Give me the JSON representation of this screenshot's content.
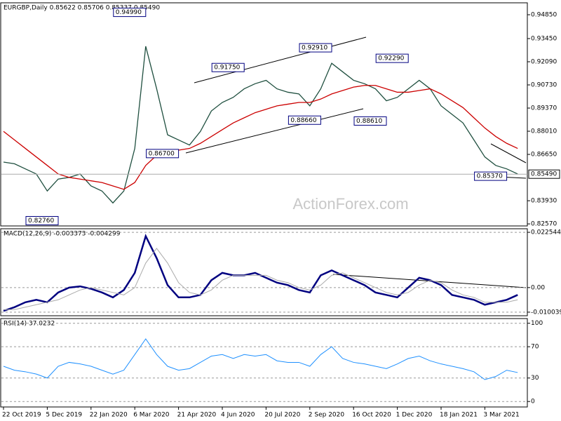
{
  "chart_data": [
    {
      "type": "line",
      "title": "EURGBP,Daily  0.85622 0.85706 0.85337 0.85490",
      "categories": [
        "22 Oct 2019",
        null,
        null,
        null,
        "5 Dec 2019",
        null,
        null,
        null,
        "22 Jan 2020",
        null,
        null,
        null,
        "6 Mar 2020",
        null,
        null,
        null,
        "21 Apr 2020",
        null,
        null,
        null,
        "4 Jun 2020",
        null,
        null,
        null,
        "20 Jul 2020",
        null,
        null,
        null,
        "2 Sep 2020",
        null,
        null,
        null,
        "16 Oct 2020",
        null,
        null,
        null,
        "1 Dec 2020",
        null,
        null,
        null,
        "18 Jan 2021",
        null,
        null,
        null,
        "3 Mar 2021",
        null,
        null,
        null
      ],
      "series": [
        {
          "color": "#1f4f3f",
          "values": [
            0.862,
            0.861,
            0.858,
            0.855,
            0.845,
            0.852,
            0.853,
            0.855,
            0.848,
            0.845,
            0.838,
            0.845,
            0.87,
            0.93,
            0.905,
            0.878,
            0.875,
            0.872,
            0.88,
            0.892,
            0.897,
            0.9,
            0.905,
            0.908,
            0.91,
            0.905,
            0.903,
            0.902,
            0.895,
            0.905,
            0.92,
            0.915,
            0.91,
            0.908,
            0.905,
            0.898,
            0.9,
            0.905,
            0.91,
            0.905,
            0.895,
            0.89,
            0.885,
            0.875,
            0.865,
            0.86,
            0.858,
            0.855
          ]
        },
        {
          "color": "#cc0000",
          "values": [
            0.88,
            0.875,
            0.87,
            0.865,
            0.86,
            0.855,
            0.853,
            0.852,
            0.851,
            0.85,
            0.848,
            0.846,
            0.85,
            0.86,
            0.866,
            0.868,
            0.869,
            0.87,
            0.873,
            0.877,
            0.881,
            0.885,
            0.888,
            0.891,
            0.893,
            0.895,
            0.896,
            0.897,
            0.897,
            0.899,
            0.902,
            0.904,
            0.906,
            0.907,
            0.907,
            0.905,
            0.903,
            0.903,
            0.904,
            0.905,
            0.902,
            0.898,
            0.894,
            0.888,
            0.882,
            0.877,
            0.873,
            0.87
          ]
        }
      ],
      "ylim": [
        0.8245,
        0.9555
      ],
      "yticks": [
        {
          "value": 0.9485,
          "label": "0.94850"
        },
        {
          "value": 0.9345,
          "label": "0.93450"
        },
        {
          "value": 0.9209,
          "label": "0.92090"
        },
        {
          "value": 0.9073,
          "label": "0.90730"
        },
        {
          "value": 0.8937,
          "label": "0.89370"
        },
        {
          "value": 0.8801,
          "label": "0.88010"
        },
        {
          "value": 0.8665,
          "label": "0.86650"
        },
        {
          "value": 0.8393,
          "label": "0.83930"
        },
        {
          "value": 0.8257,
          "label": "0.82570"
        }
      ],
      "last_price": {
        "value": 0.8549,
        "label": "0.85490"
      },
      "annotations": [
        {
          "index": 13,
          "value": 0.9499,
          "label": "0.94990"
        },
        {
          "index": 5,
          "value": 0.8276,
          "label": "0.82760"
        },
        {
          "index": 16,
          "value": 0.867,
          "label": "0.86700"
        },
        {
          "index": 22,
          "value": 0.9175,
          "label": "0.91750"
        },
        {
          "index": 30,
          "value": 0.9291,
          "label": "0.92910"
        },
        {
          "index": 29,
          "value": 0.8866,
          "label": "0.88660"
        },
        {
          "index": 35,
          "value": 0.8861,
          "label": "0.88610"
        },
        {
          "index": 37,
          "value": 0.9229,
          "label": "0.92290"
        },
        {
          "index": 46,
          "value": 0.8537,
          "label": "0.85370"
        }
      ],
      "watermark": "ActionForex.com"
    },
    {
      "type": "line",
      "title": "MACD(12,26,9) -0.003373 -0.004299",
      "series": [
        {
          "color": "#000080",
          "width": 2.5,
          "values": [
            -0.0095,
            -0.008,
            -0.006,
            -0.005,
            -0.006,
            -0.002,
            0.0,
            0.0005,
            -0.0005,
            -0.002,
            -0.004,
            -0.001,
            0.006,
            0.021,
            0.012,
            0.001,
            -0.004,
            -0.004,
            -0.003,
            0.003,
            0.006,
            0.005,
            0.005,
            0.006,
            0.004,
            0.002,
            0.001,
            -0.001,
            -0.002,
            0.005,
            0.007,
            0.005,
            0.003,
            0.001,
            -0.002,
            -0.003,
            -0.004,
            0.0,
            0.004,
            0.003,
            0.001,
            -0.003,
            -0.004,
            -0.005,
            -0.007,
            -0.006,
            -0.005,
            -0.003
          ]
        },
        {
          "color": "#aaaaaa",
          "width": 1,
          "values": [
            -0.009,
            -0.009,
            -0.008,
            -0.007,
            -0.006,
            -0.005,
            -0.003,
            -0.001,
            0.0,
            -0.001,
            -0.002,
            -0.003,
            0.0,
            0.01,
            0.016,
            0.01,
            0.002,
            -0.002,
            -0.003,
            -0.001,
            0.003,
            0.005,
            0.005,
            0.005,
            0.005,
            0.003,
            0.002,
            0.0,
            -0.001,
            0.001,
            0.005,
            0.006,
            0.004,
            0.002,
            0.0,
            -0.002,
            -0.003,
            -0.002,
            0.001,
            0.003,
            0.002,
            -0.001,
            -0.003,
            -0.004,
            -0.006,
            -0.006,
            -0.006,
            -0.005
          ]
        }
      ],
      "ylim": [
        -0.0115,
        0.024
      ],
      "yticks": [
        {
          "value": 0.022544,
          "label": "0.022544"
        },
        {
          "value": 0,
          "label": "0.00"
        },
        {
          "value": -0.010039,
          "label": "-0.010039"
        }
      ],
      "grid": true
    },
    {
      "type": "line",
      "title": "RSI(14) 37.0232",
      "series": [
        {
          "color": "#1e90ff",
          "width": 1,
          "values": [
            45,
            40,
            38,
            35,
            30,
            45,
            50,
            48,
            45,
            40,
            35,
            40,
            60,
            80,
            60,
            45,
            40,
            42,
            50,
            58,
            60,
            55,
            60,
            58,
            60,
            52,
            50,
            50,
            45,
            60,
            70,
            55,
            50,
            48,
            45,
            42,
            48,
            55,
            58,
            52,
            48,
            45,
            42,
            38,
            28,
            32,
            40,
            37
          ]
        }
      ],
      "ylim": [
        -7,
        106
      ],
      "yticks": [
        100,
        70,
        30,
        0
      ],
      "grid": true
    }
  ]
}
